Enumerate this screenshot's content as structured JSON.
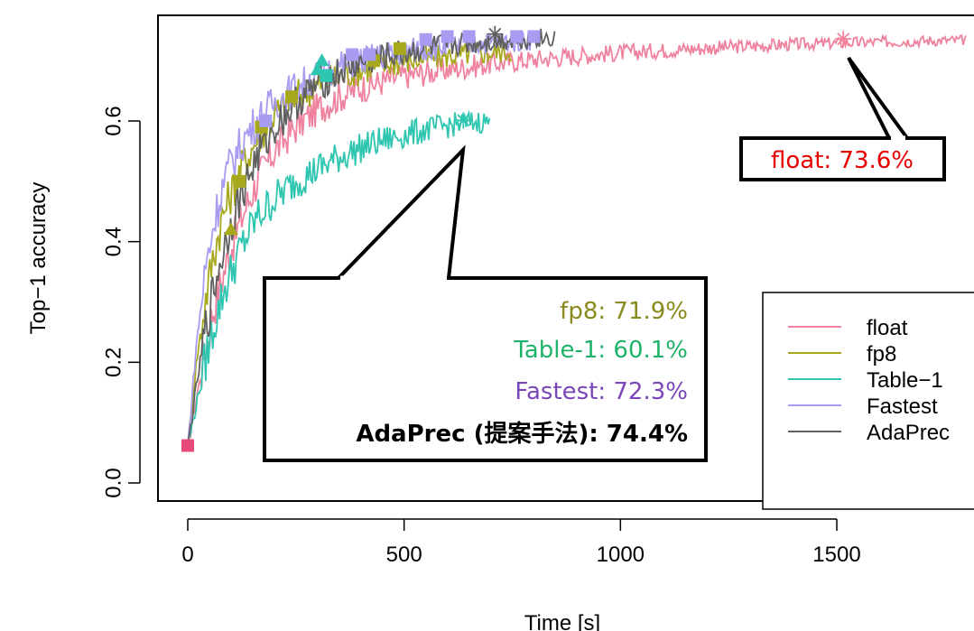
{
  "chart_data": {
    "type": "line",
    "xlabel": "Time [s]",
    "ylabel": "Top−1 accuracy",
    "xlim": [
      -70,
      1810
    ],
    "ylim": [
      -0.04,
      0.775
    ],
    "x_ticks": [
      0,
      500,
      1000,
      1500
    ],
    "y_ticks": [
      0.0,
      0.2,
      0.4,
      0.6
    ],
    "x_tick_labels": [
      "0",
      "500",
      "1000",
      "1500"
    ],
    "y_tick_labels": [
      "0.0",
      "0.2",
      "0.4",
      "0.6"
    ],
    "legend_position": "bottom-right",
    "series": [
      {
        "name": "float",
        "color": "#f0829e",
        "x": [
          0,
          20,
          40,
          60,
          80,
          100,
          130,
          160,
          200,
          250,
          300,
          350,
          400,
          500,
          600,
          700,
          800,
          900,
          1000,
          1100,
          1200,
          1300,
          1400,
          1500,
          1600,
          1700,
          1800
        ],
        "y": [
          0.06,
          0.14,
          0.22,
          0.29,
          0.34,
          0.39,
          0.45,
          0.5,
          0.55,
          0.59,
          0.62,
          0.64,
          0.655,
          0.675,
          0.685,
          0.695,
          0.702,
          0.708,
          0.713,
          0.717,
          0.721,
          0.724,
          0.727,
          0.729,
          0.731,
          0.733,
          0.734
        ],
        "final_marker": {
          "x": 1515,
          "y": 0.736
        }
      },
      {
        "name": "fp8",
        "color": "#a7a81c",
        "x": [
          0,
          20,
          40,
          60,
          80,
          100,
          130,
          160,
          200,
          250,
          300,
          350,
          400,
          450,
          500,
          550,
          600,
          650,
          700,
          750
        ],
        "y": [
          0.06,
          0.2,
          0.3,
          0.38,
          0.44,
          0.48,
          0.53,
          0.57,
          0.61,
          0.64,
          0.66,
          0.675,
          0.685,
          0.693,
          0.7,
          0.704,
          0.708,
          0.711,
          0.713,
          0.716
        ],
        "markers": [
          {
            "x": 100,
            "y": 0.42
          },
          {
            "x": 120,
            "y": 0.5
          },
          {
            "x": 170,
            "y": 0.59
          },
          {
            "x": 240,
            "y": 0.64
          },
          {
            "x": 430,
            "y": 0.7
          },
          {
            "x": 490,
            "y": 0.72
          }
        ]
      },
      {
        "name": "Table−1",
        "color": "#2ec6b0",
        "x": [
          0,
          20,
          40,
          60,
          80,
          100,
          130,
          160,
          200,
          250,
          300,
          350,
          400,
          450,
          500,
          550,
          600,
          650,
          700
        ],
        "y": [
          0.06,
          0.13,
          0.2,
          0.26,
          0.31,
          0.35,
          0.4,
          0.44,
          0.47,
          0.5,
          0.52,
          0.54,
          0.555,
          0.567,
          0.577,
          0.585,
          0.592,
          0.597,
          0.6
        ],
        "final_marker": {
          "x": 637,
          "y": 0.601
        }
      },
      {
        "name": "Fastest",
        "color": "#a89cf2",
        "x": [
          0,
          20,
          40,
          60,
          80,
          100,
          130,
          160,
          200,
          250,
          300,
          350,
          400,
          450,
          500,
          550,
          600,
          650,
          700,
          750,
          800
        ],
        "y": [
          0.06,
          0.23,
          0.35,
          0.43,
          0.49,
          0.53,
          0.57,
          0.6,
          0.63,
          0.655,
          0.675,
          0.69,
          0.7,
          0.708,
          0.715,
          0.72,
          0.724,
          0.727,
          0.73,
          0.732,
          0.734
        ],
        "markers": [
          {
            "x": 180,
            "y": 0.6
          },
          {
            "x": 380,
            "y": 0.71
          },
          {
            "x": 420,
            "y": 0.71
          },
          {
            "x": 550,
            "y": 0.735
          },
          {
            "x": 600,
            "y": 0.74
          },
          {
            "x": 650,
            "y": 0.74
          },
          {
            "x": 760,
            "y": 0.74
          },
          {
            "x": 800,
            "y": 0.74
          }
        ]
      },
      {
        "name": "AdaPrec",
        "color": "#606060",
        "x": [
          0,
          20,
          40,
          60,
          80,
          100,
          130,
          160,
          200,
          250,
          300,
          350,
          400,
          450,
          500,
          550,
          600,
          650,
          700,
          750,
          800,
          850
        ],
        "y": [
          0.06,
          0.16,
          0.25,
          0.32,
          0.38,
          0.43,
          0.49,
          0.54,
          0.59,
          0.63,
          0.66,
          0.68,
          0.695,
          0.705,
          0.713,
          0.72,
          0.725,
          0.729,
          0.732,
          0.735,
          0.737,
          0.738
        ],
        "final_marker": {
          "x": 710,
          "y": 0.744
        }
      }
    ],
    "start_marker": {
      "x": 0,
      "y": 0.062,
      "color": "#e84a7a"
    }
  },
  "callouts": {
    "float": {
      "label": "float: 73.6%",
      "color": "#e60000"
    },
    "fp8": {
      "label": "fp8: 71.9%",
      "color": "#8a8a1e"
    },
    "table1": {
      "label": "Table-1: 60.1%",
      "color": "#1fb36a"
    },
    "fastest": {
      "label": "Fastest: 72.3%",
      "color": "#7a45b8"
    },
    "adaprec": {
      "label": "AdaPrec (提案手法): 74.4%",
      "color": "#000000"
    }
  },
  "legend": {
    "items": [
      {
        "label": "float",
        "color": "#f0829e"
      },
      {
        "label": "fp8",
        "color": "#a7a81c"
      },
      {
        "label": "Table−1",
        "color": "#2ec6b0"
      },
      {
        "label": "Fastest",
        "color": "#a89cf2"
      },
      {
        "label": "AdaPrec",
        "color": "#606060"
      }
    ]
  }
}
